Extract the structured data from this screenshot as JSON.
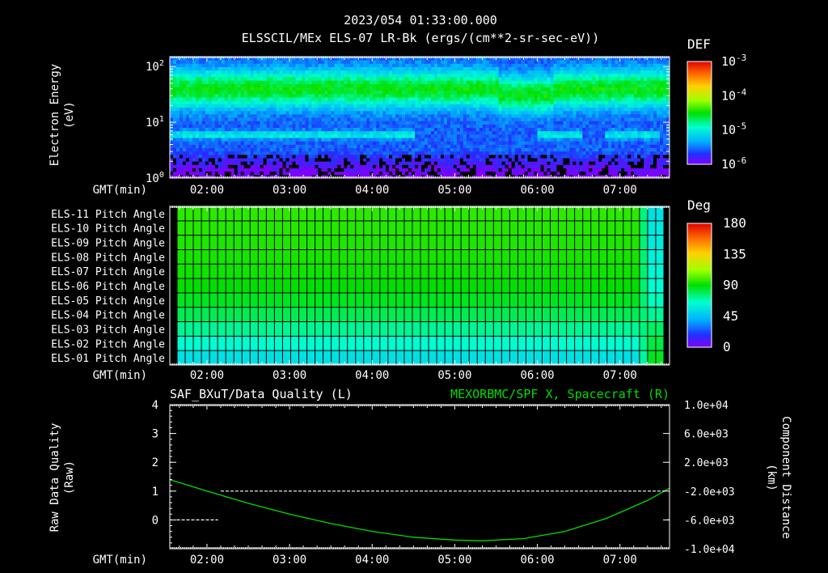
{
  "header": {
    "timestamp": "2023/054 01:33:00.000",
    "title": "ELSSCIL/MEx ELS-07 LR-Bk  (ergs/(cm**2-sr-sec-eV))"
  },
  "time_axis": {
    "label": "GMT(min)",
    "ticks": [
      "02:00",
      "03:00",
      "04:00",
      "05:00",
      "06:00",
      "07:00"
    ],
    "start_min": 93,
    "end_min": 456
  },
  "chart_data": [
    {
      "type": "heatmap",
      "id": "electron-energy-spectrogram",
      "ylabel": [
        "Electron Energy",
        "(eV)"
      ],
      "yscale": "log",
      "ylim": [
        1,
        150
      ],
      "y_ticks": [
        {
          "value": 1,
          "base": "10",
          "exp": "0"
        },
        {
          "value": 10,
          "base": "10",
          "exp": "1"
        },
        {
          "value": 100,
          "base": "10",
          "exp": "2"
        }
      ],
      "colorbar": {
        "title": "DEF",
        "scale": "log",
        "ticks": [
          {
            "base": "10",
            "exp": "-3"
          },
          {
            "base": "10",
            "exp": "-4"
          },
          {
            "base": "10",
            "exp": "-5"
          },
          {
            "base": "10",
            "exp": "-6"
          }
        ],
        "range": [
          1e-06,
          0.001
        ]
      },
      "features": {
        "main_band_energy_eV": 40,
        "low_band_energy_eV": 6,
        "low_band_windows_min": [
          [
            93,
            180
          ],
          [
            180,
            270
          ],
          [
            360,
            392
          ],
          [
            410,
            450
          ]
        ],
        "dropout_window_min": [
          332,
          372
        ]
      }
    },
    {
      "type": "heatmap",
      "id": "pitch-angle-grid",
      "rows": [
        "ELS-11 Pitch Angle",
        "ELS-10 Pitch Angle",
        "ELS-09 Pitch Angle",
        "ELS-08 Pitch Angle",
        "ELS-07 Pitch Angle",
        "ELS-06 Pitch Angle",
        "ELS-05 Pitch Angle",
        "ELS-04 Pitch Angle",
        "ELS-03 Pitch Angle",
        "ELS-02 Pitch Angle",
        "ELS-01 Pitch Angle"
      ],
      "row_angles_deg": [
        96,
        95,
        94,
        93,
        92,
        90,
        86,
        80,
        72,
        64,
        55
      ],
      "row_angles_after_switch_deg": [
        55,
        57,
        58,
        60,
        62,
        64,
        67,
        72,
        78,
        82,
        86
      ],
      "switch_time_min": 438,
      "colorbar": {
        "title": "Deg",
        "ticks": [
          "180",
          "135",
          "90",
          "45",
          "0"
        ],
        "range": [
          0,
          180
        ]
      }
    },
    {
      "type": "line",
      "id": "quality-and-position",
      "left_title": "SAF_BXuT/Data Quality (L)",
      "right_title": "MEXORBMC/SPF X, Spacecraft (R)",
      "left_color": "#ffffff",
      "right_color": "#00dd00",
      "left_ylabel": [
        "Raw Data Quality",
        "(Raw)"
      ],
      "right_ylabel": [
        "Component Distance",
        "(km)"
      ],
      "left_ylim": [
        -1,
        4
      ],
      "left_ticks": [
        "4",
        "3",
        "2",
        "1",
        "0"
      ],
      "right_ylim": [
        -10000,
        10000
      ],
      "right_ticks": [
        "1.0e+04",
        "6.0e+03",
        "2.0e+03",
        "-2.0e+03",
        "-6.0e+03",
        "-1.0e+04"
      ],
      "series": [
        {
          "name": "SAF_BXuT/Data Quality",
          "axis": "left",
          "style": "dashed",
          "segments": [
            {
              "x": [
                98,
                128
              ],
              "y": [
                0,
                0
              ]
            },
            {
              "x": [
                130,
                453
              ],
              "y": [
                1,
                1
              ]
            },
            {
              "x": [
                454,
                456
              ],
              "y": [
                0,
                0
              ]
            }
          ]
        },
        {
          "name": "MEXORBMC/SPF X, Spacecraft",
          "axis": "right",
          "x": [
            93,
            120,
            150,
            180,
            210,
            240,
            270,
            300,
            320,
            350,
            380,
            410,
            440,
            456
          ],
          "y": [
            -400,
            -2000,
            -3700,
            -5200,
            -6500,
            -7600,
            -8400,
            -8800,
            -8900,
            -8600,
            -7600,
            -5800,
            -3300,
            -1600
          ]
        }
      ]
    }
  ]
}
